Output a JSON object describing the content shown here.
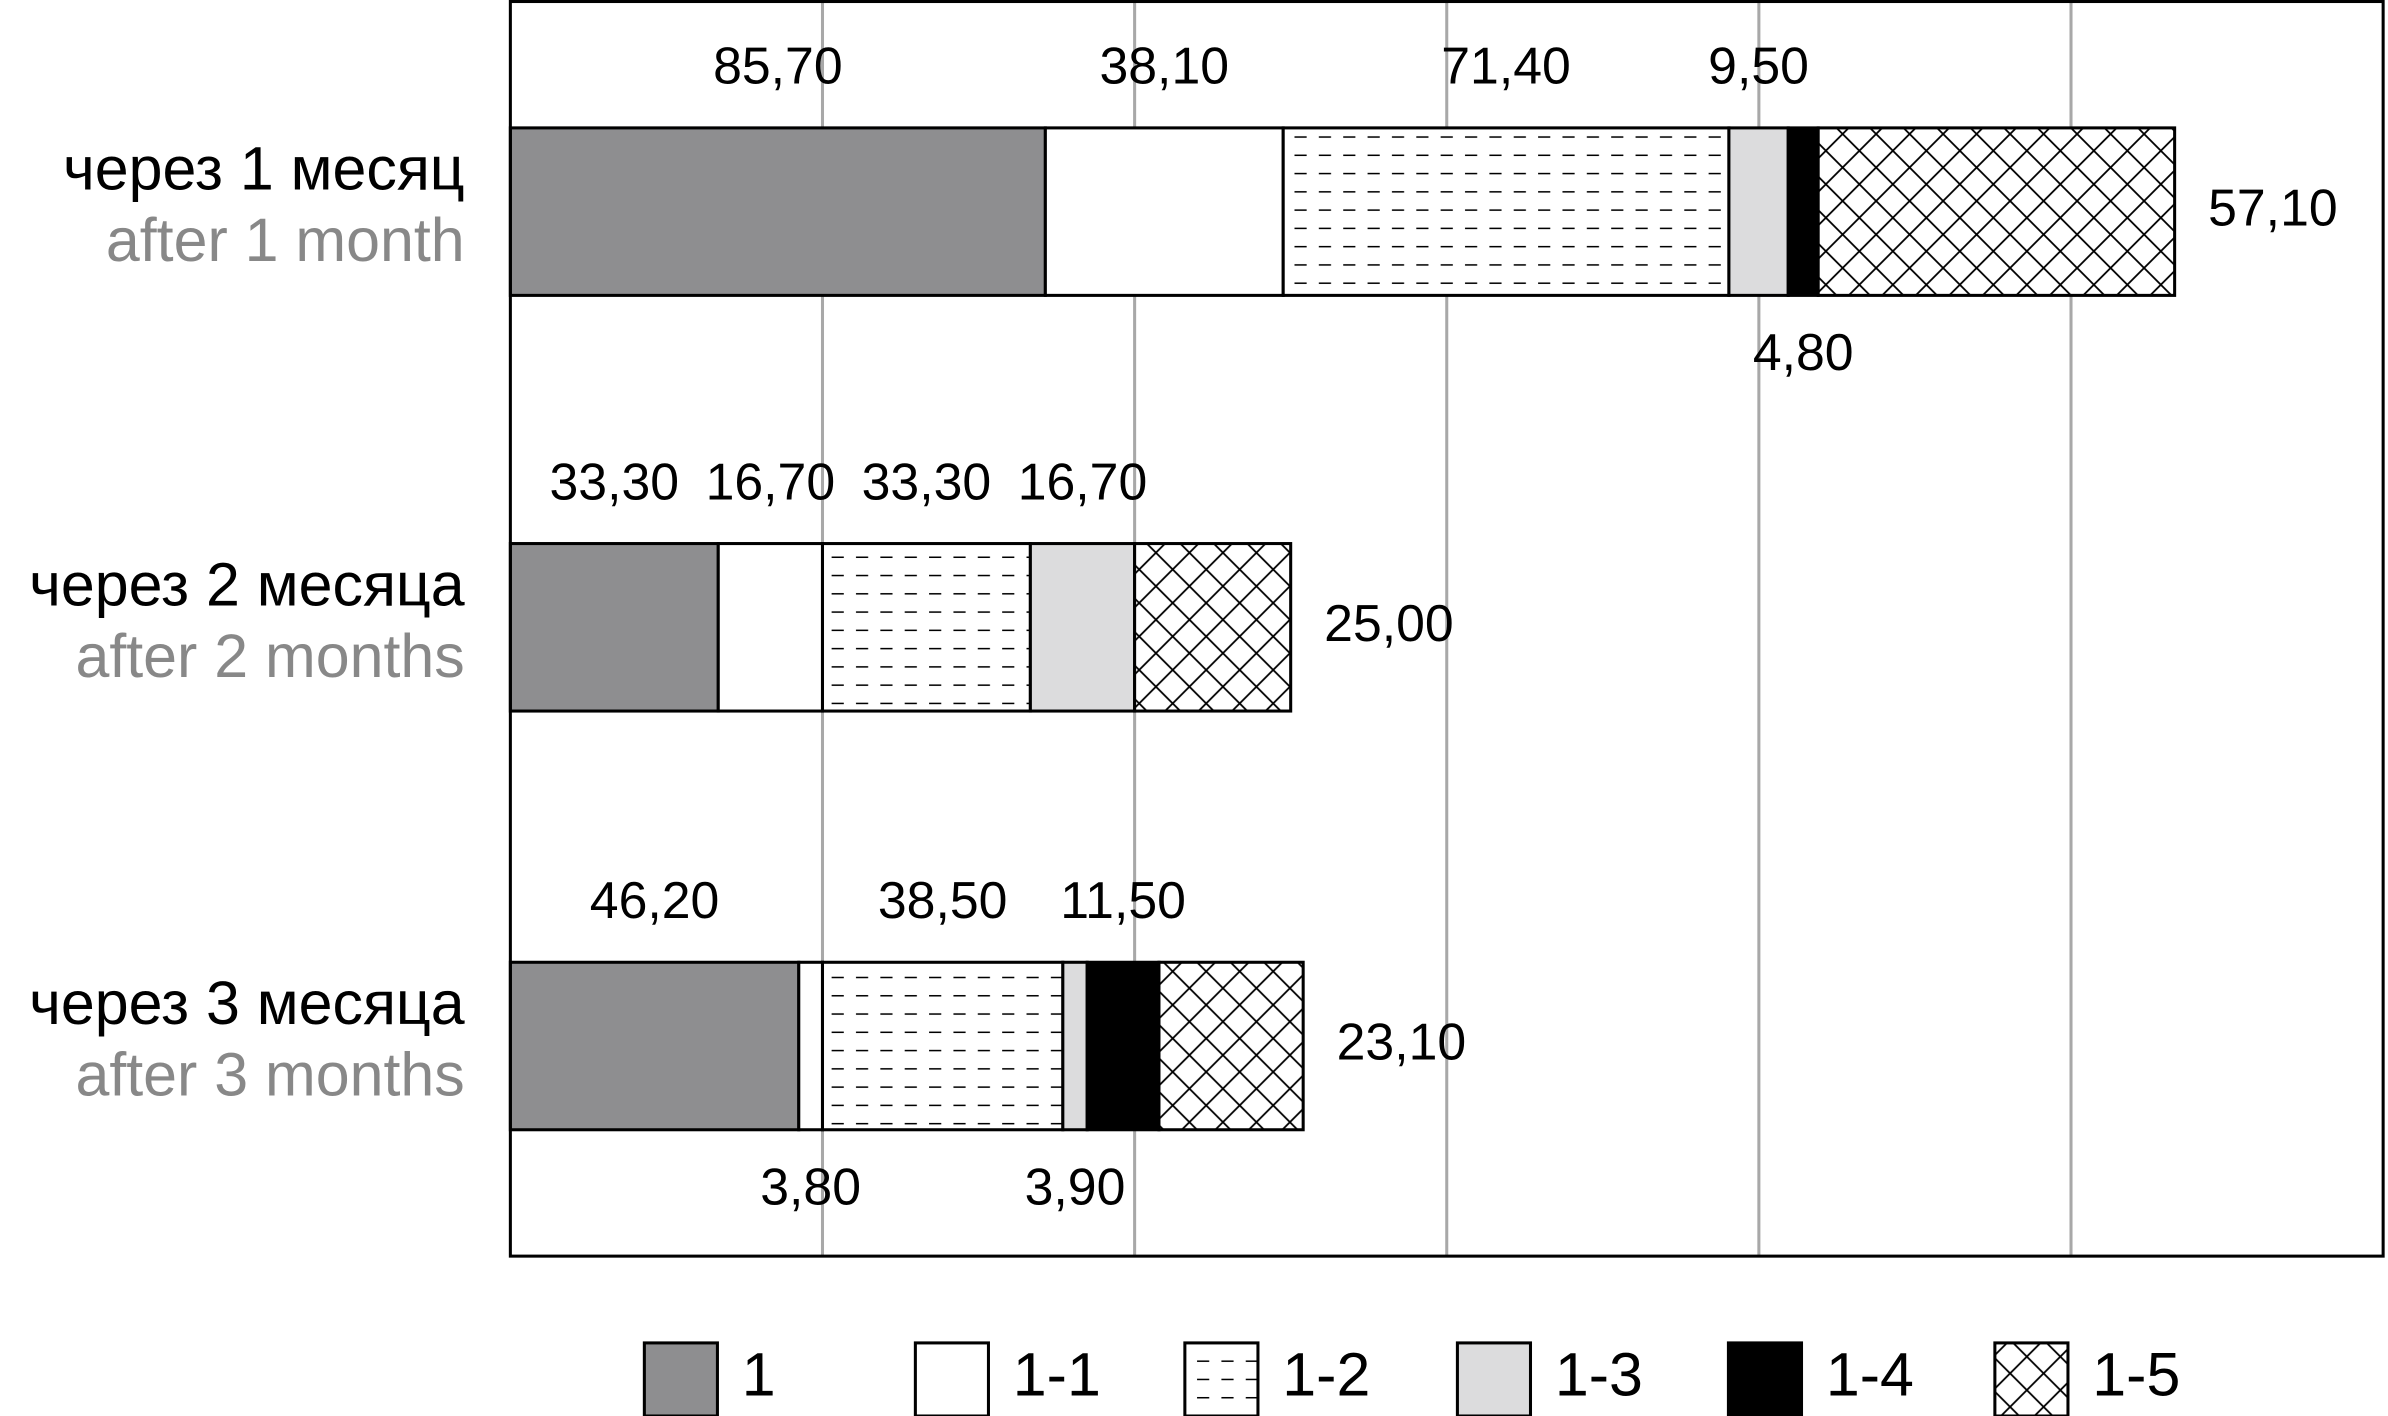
{
  "chart_data": {
    "type": "stacked-bar-horizontal",
    "categories": [
      "через 1 месяц",
      "через 2 месяца",
      "через 3 месяца"
    ],
    "categories_en": [
      "after 1 month",
      "after 2 months",
      "after 3 months"
    ],
    "xlim": [
      0,
      300
    ],
    "xticks": [
      50,
      100,
      150,
      200,
      250
    ],
    "grid": true,
    "legend": "bottom",
    "series": [
      {
        "name": "1",
        "color": "#8e8e90",
        "values": [
          85.7,
          33.3,
          46.2
        ],
        "value_labels": [
          "85,70",
          "33,30",
          "46,20"
        ]
      },
      {
        "name": "1-1",
        "color": "#ffffff",
        "values": [
          38.1,
          16.7,
          3.8
        ],
        "value_labels": [
          "38,10",
          "16,70",
          "3,80"
        ]
      },
      {
        "name": "1-2",
        "color": "#ffffff",
        "pattern": "dashes",
        "values": [
          71.4,
          33.3,
          38.5
        ],
        "value_labels": [
          "71,40",
          "33,30",
          "38,50"
        ]
      },
      {
        "name": "1-3",
        "color": "#dcdcdd",
        "values": [
          9.5,
          16.7,
          3.9
        ],
        "value_labels": [
          "9,50",
          "16,70",
          "3,90"
        ]
      },
      {
        "name": "1-4",
        "color": "#000000",
        "values": [
          4.8,
          null,
          11.5
        ],
        "value_labels": [
          "4,80",
          null,
          "11,50"
        ]
      },
      {
        "name": "1-5",
        "color": "#ffffff",
        "pattern": "crosshatch",
        "values": [
          57.1,
          25.0,
          23.1
        ],
        "value_labels": [
          "57,10",
          "25,00",
          "23,10"
        ]
      }
    ]
  }
}
